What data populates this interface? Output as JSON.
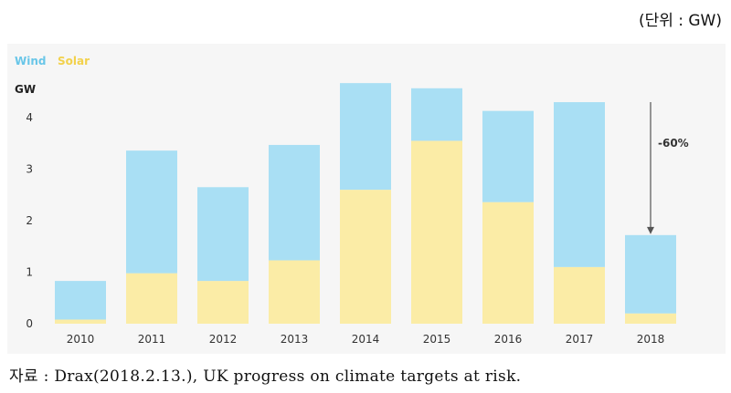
{
  "unit_note": "(단위 : GW)",
  "source": "자료 : Drax(2018.2.13.), UK progress on climate targets at risk.",
  "chart_data": {
    "type": "bar",
    "stacked": true,
    "categories": [
      "2010",
      "2011",
      "2012",
      "2013",
      "2014",
      "2015",
      "2016",
      "2017",
      "2018"
    ],
    "series": [
      {
        "name": "Solar",
        "color": "#fbeca6",
        "values": [
          0.08,
          0.98,
          0.83,
          1.23,
          2.6,
          3.55,
          2.36,
          1.1,
          0.2
        ]
      },
      {
        "name": "Wind",
        "color": "#a9dff4",
        "values": [
          0.75,
          2.38,
          1.82,
          2.24,
          2.07,
          1.02,
          1.77,
          3.2,
          1.52
        ]
      }
    ],
    "ylabel": "GW",
    "yticks": [
      0,
      1,
      2,
      3,
      4
    ],
    "ylim": [
      0,
      4.7
    ],
    "legend": [
      "Wind",
      "Solar"
    ],
    "annotation": {
      "text": "-60%",
      "category": "2018"
    },
    "grid": false
  }
}
